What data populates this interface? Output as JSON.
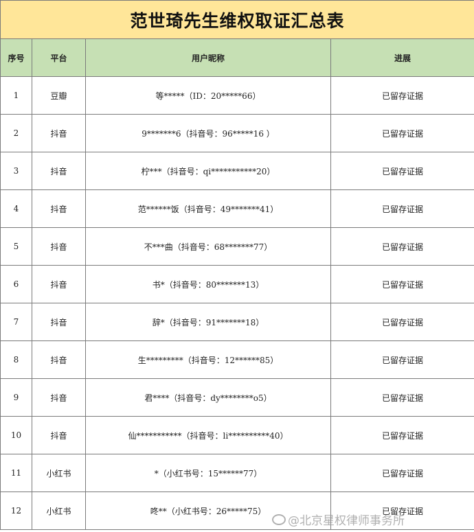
{
  "title": "范世琦先生维权取证汇总表",
  "headers": [
    "序号",
    "平台",
    "用户昵称",
    "进展"
  ],
  "rows": [
    {
      "no": "1",
      "platform": "豆瓣",
      "user": "等*****（ID：20*****66）",
      "status": "已留存证据"
    },
    {
      "no": "2",
      "platform": "抖音",
      "user": "9*******6（抖音号：96*****16 ）",
      "status": "已留存证据"
    },
    {
      "no": "3",
      "platform": "抖音",
      "user": "柠***（抖音号：qi***********20）",
      "status": "已留存证据"
    },
    {
      "no": "4",
      "platform": "抖音",
      "user": "范******饭（抖音号：49*******41）",
      "status": "已留存证据"
    },
    {
      "no": "5",
      "platform": "抖音",
      "user": "不***曲（抖音号：68*******77）",
      "status": "已留存证据"
    },
    {
      "no": "6",
      "platform": "抖音",
      "user": "书*（抖音号：80*******13）",
      "status": "已留存证据"
    },
    {
      "no": "7",
      "platform": "抖音",
      "user": "辞*（抖音号：91*******18）",
      "status": "已留存证据"
    },
    {
      "no": "8",
      "platform": "抖音",
      "user": "生*********（抖音号：12******85）",
      "status": "已留存证据"
    },
    {
      "no": "9",
      "platform": "抖音",
      "user": "君****（抖音号：dy********o5）",
      "status": "已留存证据"
    },
    {
      "no": "10",
      "platform": "抖音",
      "user": "仙***********（抖音号：li**********40）",
      "status": "已留存证据"
    },
    {
      "no": "11",
      "platform": "小红书",
      "user": "*（小红书号：15******77）",
      "status": "已留存证据"
    },
    {
      "no": "12",
      "platform": "小红书",
      "user": "咚**（小红书号：26*****75）",
      "status": "已留存证据"
    }
  ],
  "watermark": "@北京星权律师事务所"
}
